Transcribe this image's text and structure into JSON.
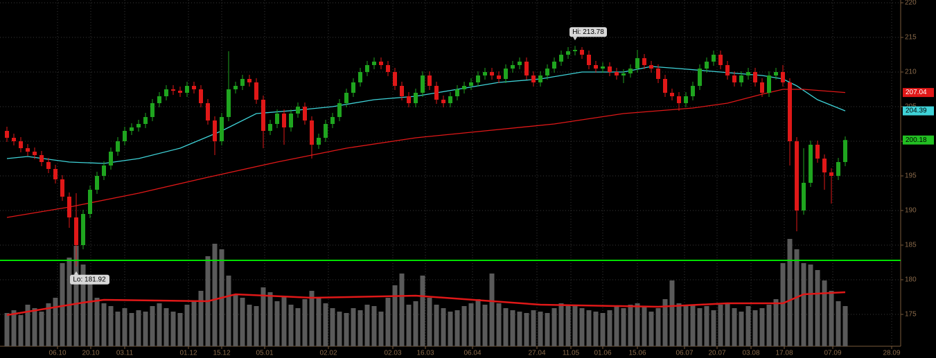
{
  "chart_data": {
    "type": "candlestick",
    "x": [
      1,
      2,
      3,
      4,
      5,
      6,
      7,
      8,
      9,
      10,
      11,
      12,
      13,
      14,
      15,
      16,
      17,
      18,
      19,
      20,
      21,
      22,
      23,
      24,
      25,
      26,
      27,
      28,
      29,
      30,
      31,
      32,
      33,
      34,
      35,
      36,
      37,
      38,
      39,
      40,
      41,
      42,
      43,
      44,
      45,
      46,
      47,
      48,
      49,
      50,
      51,
      52,
      53,
      54,
      55,
      56,
      57,
      58,
      59,
      60,
      61,
      62,
      63,
      64,
      65,
      66,
      67,
      68,
      69,
      70,
      71,
      72,
      73,
      74,
      75,
      76,
      77,
      78,
      79,
      80,
      81,
      82,
      83,
      84,
      85,
      86,
      87,
      88,
      89,
      90,
      91,
      92,
      93,
      94,
      95,
      96,
      97,
      98,
      99,
      100,
      101,
      102,
      103,
      104,
      105,
      106,
      107,
      108,
      109,
      110,
      111,
      112,
      113,
      114,
      115,
      116,
      117,
      118,
      119,
      120,
      121,
      122
    ],
    "open": [
      201.5,
      200.5,
      200.0,
      199.0,
      198.5,
      198.0,
      197.0,
      196.0,
      194.5,
      192.0,
      189.0,
      185.0,
      189.5,
      193.0,
      195.0,
      196.5,
      198.5,
      200.0,
      201.5,
      202.0,
      202.5,
      203.5,
      205.5,
      206.5,
      207.5,
      207.3,
      207.0,
      208.0,
      207.5,
      205.5,
      203.0,
      200.0,
      203.5,
      207.5,
      208.0,
      209.0,
      208.5,
      206.0,
      201.5,
      202.5,
      204.0,
      202.0,
      204.0,
      205.0,
      203.0,
      199.5,
      200.5,
      202.5,
      203.5,
      205.5,
      207.0,
      208.5,
      210.0,
      211.0,
      211.5,
      211.0,
      210.0,
      208.0,
      206.5,
      205.5,
      207.0,
      209.5,
      208.0,
      206.0,
      205.5,
      206.5,
      207.5,
      208.0,
      208.5,
      209.5,
      210.0,
      209.5,
      209.0,
      210.5,
      211.0,
      211.5,
      209.5,
      208.5,
      209.5,
      210.5,
      211.5,
      212.5,
      213.0,
      213.2,
      212.5,
      211.0,
      210.5,
      210.8,
      210.0,
      209.5,
      209.8,
      210.5,
      212.0,
      211.0,
      210.5,
      209.0,
      207.0,
      206.5,
      205.5,
      206.5,
      208.0,
      210.5,
      211.5,
      212.5,
      211.0,
      209.5,
      208.5,
      209.5,
      210.0,
      208.5,
      207.0,
      209.5,
      210.0,
      208.5,
      200.0,
      190.0,
      194.0,
      199.5,
      197.5,
      195.5,
      195.0,
      197.0
    ],
    "high": [
      202.1,
      201.1,
      200.6,
      199.6,
      199.1,
      198.6,
      197.6,
      196.6,
      195.1,
      192.6,
      192.5,
      190.1,
      193.6,
      195.6,
      197.1,
      199.1,
      200.6,
      202.1,
      202.6,
      203.1,
      204.1,
      206.1,
      207.1,
      208.1,
      208.1,
      207.9,
      208.6,
      208.6,
      208.1,
      206.1,
      203.6,
      204.1,
      213.0,
      208.6,
      209.6,
      209.6,
      209.1,
      206.6,
      203.1,
      204.6,
      204.6,
      204.6,
      205.6,
      205.6,
      203.6,
      201.1,
      203.1,
      204.1,
      206.1,
      207.6,
      209.1,
      210.6,
      211.6,
      212.1,
      212.1,
      211.6,
      210.6,
      208.6,
      207.1,
      207.6,
      210.1,
      210.1,
      208.6,
      206.6,
      207.1,
      208.1,
      208.6,
      209.1,
      210.1,
      210.6,
      210.6,
      210.1,
      211.1,
      211.6,
      212.1,
      212.1,
      210.1,
      210.1,
      211.1,
      212.1,
      213.1,
      213.6,
      213.78,
      213.6,
      213.1,
      211.6,
      211.4,
      211.4,
      210.6,
      210.4,
      211.1,
      213.2,
      212.6,
      211.6,
      211.1,
      209.6,
      207.6,
      207.1,
      207.1,
      208.6,
      211.1,
      212.1,
      213.1,
      213.1,
      211.6,
      210.1,
      210.1,
      210.6,
      210.6,
      209.1,
      210.1,
      210.6,
      211.0,
      209.1,
      200.6,
      199.0,
      200.1,
      200.1,
      198.1,
      196.1,
      197.6,
      200.7
    ],
    "low": [
      199.9,
      199.4,
      198.4,
      197.9,
      197.4,
      196.4,
      195.4,
      193.9,
      191.4,
      187.5,
      181.92,
      184.4,
      188.9,
      192.4,
      194.4,
      195.9,
      197.9,
      199.4,
      200.9,
      201.4,
      201.9,
      202.9,
      204.9,
      205.9,
      206.7,
      206.4,
      206.4,
      206.9,
      204.9,
      202.4,
      198.0,
      199.4,
      202.9,
      206.9,
      207.4,
      207.9,
      205.4,
      199.0,
      200.9,
      201.9,
      199.5,
      201.4,
      203.4,
      202.4,
      197.5,
      198.9,
      199.9,
      201.9,
      202.9,
      204.9,
      206.4,
      207.9,
      209.4,
      210.4,
      210.4,
      209.4,
      207.4,
      205.9,
      204.9,
      204.9,
      206.4,
      207.4,
      205.4,
      204.9,
      204.9,
      205.9,
      206.9,
      207.4,
      207.9,
      208.9,
      208.9,
      208.4,
      208.4,
      209.9,
      210.4,
      208.9,
      207.9,
      207.9,
      208.9,
      209.9,
      210.9,
      211.9,
      212.4,
      211.9,
      210.4,
      209.9,
      209.9,
      209.4,
      208.9,
      208.4,
      209.2,
      209.9,
      210.4,
      209.9,
      208.4,
      206.4,
      205.9,
      204.4,
      204.9,
      205.9,
      207.4,
      209.9,
      210.9,
      210.4,
      208.9,
      207.9,
      207.9,
      208.9,
      207.9,
      206.4,
      206.4,
      208.9,
      207.9,
      196.5,
      187.0,
      189.4,
      193.4,
      196.9,
      193.0,
      191.0,
      194.4,
      196.4
    ],
    "close": [
      200.5,
      200.0,
      199.0,
      198.5,
      198.0,
      197.0,
      196.0,
      194.5,
      192.0,
      189.0,
      185.0,
      189.5,
      193.0,
      195.0,
      196.5,
      198.5,
      200.0,
      201.5,
      202.0,
      202.5,
      203.5,
      205.5,
      206.5,
      207.5,
      207.3,
      207.0,
      208.0,
      207.5,
      205.5,
      203.0,
      200.0,
      203.5,
      207.5,
      208.0,
      209.0,
      208.5,
      206.0,
      201.5,
      202.5,
      204.0,
      202.0,
      204.0,
      205.0,
      203.0,
      199.5,
      200.5,
      202.5,
      203.5,
      205.5,
      207.0,
      208.5,
      210.0,
      211.0,
      211.5,
      211.0,
      210.0,
      208.0,
      206.5,
      205.5,
      207.0,
      209.5,
      208.0,
      206.0,
      205.5,
      206.5,
      207.5,
      208.0,
      208.5,
      209.5,
      210.0,
      209.5,
      209.0,
      210.5,
      211.0,
      211.5,
      209.5,
      208.5,
      209.5,
      210.5,
      211.5,
      212.5,
      213.0,
      213.2,
      212.5,
      211.0,
      210.5,
      210.8,
      210.0,
      209.5,
      209.8,
      210.5,
      212.0,
      211.0,
      210.5,
      209.0,
      207.0,
      206.5,
      205.5,
      206.5,
      208.0,
      210.5,
      211.5,
      212.5,
      211.0,
      209.5,
      208.5,
      209.5,
      210.0,
      208.5,
      207.0,
      209.5,
      210.0,
      208.5,
      200.0,
      190.0,
      194.0,
      199.5,
      197.5,
      195.5,
      195.0,
      197.0,
      200.18
    ],
    "close_color": "#22c022",
    "up_color": "#1fa51f",
    "down_color": "#e01818",
    "moving_averages": [
      {
        "color": "#3fd3d8",
        "x": [
          1,
          4,
          10,
          15,
          20,
          26,
          32,
          37,
          43,
          48,
          54,
          60,
          66,
          72,
          78,
          84,
          90,
          94,
          98,
          104,
          110,
          113,
          115,
          118,
          122
        ],
        "values": [
          197.5,
          197.8,
          197.0,
          196.8,
          197.5,
          199.0,
          201.5,
          204.0,
          204.5,
          205.0,
          206.0,
          206.5,
          207.5,
          208.5,
          209.0,
          210.0,
          210.0,
          210.8,
          210.5,
          210.0,
          209.5,
          209.0,
          208.0,
          206.0,
          204.39
        ]
      },
      {
        "color": "#e01818",
        "x": [
          1,
          10,
          20,
          30,
          40,
          50,
          60,
          70,
          80,
          90,
          100,
          105,
          110,
          113,
          116,
          122
        ],
        "values": [
          189.0,
          190.5,
          192.5,
          194.8,
          197.0,
          199.0,
          200.5,
          201.5,
          202.5,
          204.0,
          204.8,
          205.5,
          206.8,
          207.5,
          207.5,
          207.04
        ]
      }
    ],
    "volume": {
      "color": "#5a5a5a",
      "vlim": [
        0,
        160
      ],
      "values": [
        48,
        52,
        45,
        60,
        55,
        50,
        62,
        70,
        120,
        128,
        145,
        118,
        95,
        70,
        62,
        58,
        50,
        55,
        48,
        52,
        50,
        58,
        62,
        55,
        50,
        48,
        60,
        65,
        80,
        130,
        148,
        140,
        102,
        75,
        70,
        60,
        58,
        85,
        78,
        65,
        72,
        60,
        55,
        68,
        80,
        70,
        62,
        55,
        50,
        48,
        55,
        52,
        60,
        58,
        50,
        70,
        88,
        105,
        60,
        65,
        102,
        70,
        60,
        55,
        50,
        52,
        58,
        62,
        68,
        60,
        105,
        62,
        55,
        52,
        50,
        48,
        52,
        50,
        48,
        55,
        62,
        58,
        60,
        55,
        52,
        50,
        48,
        52,
        58,
        55,
        60,
        62,
        58,
        50,
        55,
        68,
        95,
        62,
        58,
        60,
        55,
        58,
        52,
        60,
        62,
        55,
        50,
        58,
        52,
        55,
        60,
        68,
        120,
        155,
        140,
        120,
        118,
        110,
        95,
        80,
        65,
        58
      ],
      "ma": {
        "color": "#e01818",
        "x": [
          1,
          12,
          15,
          30,
          34,
          45,
          60,
          78,
          95,
          105,
          113,
          116,
          122
        ],
        "values": [
          45,
          63,
          67,
          65,
          75,
          70,
          73,
          60,
          57,
          62,
          62,
          75,
          78
        ]
      }
    },
    "hline": {
      "value": 182.8,
      "color": "#00e000"
    },
    "hi_label": "Hi: 213.78",
    "lo_label": "Lo: 181.92",
    "xlim": [
      0,
      130
    ],
    "ylim": [
      170.4,
      220.4
    ],
    "yticks": [
      175,
      180,
      185,
      190,
      195,
      200,
      205,
      210,
      215,
      220
    ],
    "xticks": [
      {
        "value": 8.3,
        "label": "06.10"
      },
      {
        "value": 13.1,
        "label": "20.10"
      },
      {
        "value": 18.0,
        "label": "03.11"
      },
      {
        "value": 27.2,
        "label": "01.12"
      },
      {
        "value": 32.0,
        "label": "15.12"
      },
      {
        "value": 38.2,
        "label": "05.01"
      },
      {
        "value": 47.4,
        "label": "02.02"
      },
      {
        "value": 56.7,
        "label": "02.03"
      },
      {
        "value": 61.4,
        "label": "16.03"
      },
      {
        "value": 68.2,
        "label": "06.04"
      },
      {
        "value": 77.5,
        "label": "27.04"
      },
      {
        "value": 82.4,
        "label": "11.05"
      },
      {
        "value": 87.0,
        "label": "01.06"
      },
      {
        "value": 92.0,
        "label": "15.06"
      },
      {
        "value": 98.8,
        "label": "06.07"
      },
      {
        "value": 103.5,
        "label": "20.07"
      },
      {
        "value": 108.4,
        "label": "03.08"
      },
      {
        "value": 113.2,
        "label": "17.08"
      },
      {
        "value": 120.2,
        "label": "07.09"
      },
      {
        "value": 128.7,
        "label": "28.09"
      }
    ],
    "grid": true
  }
}
